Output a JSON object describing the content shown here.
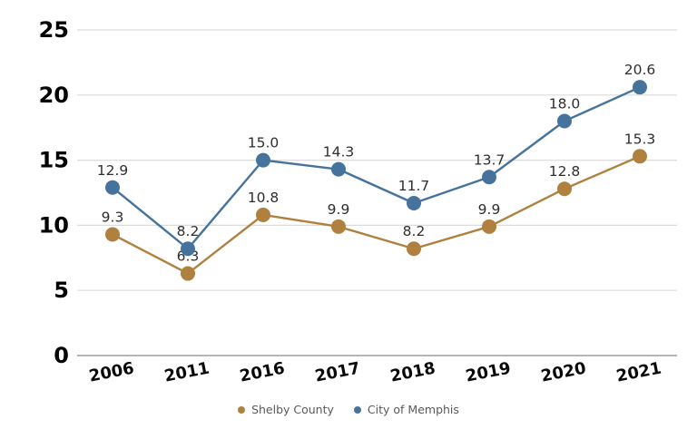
{
  "chart_data": {
    "type": "line",
    "title": "",
    "xlabel": "",
    "ylabel": "",
    "categories": [
      "2006",
      "2011",
      "2016",
      "2017",
      "2018",
      "2019",
      "2020",
      "2021"
    ],
    "series": [
      {
        "name": "Shelby County",
        "color": "#B0803F",
        "values": [
          9.3,
          6.3,
          10.8,
          9.9,
          8.2,
          9.9,
          12.8,
          15.3
        ]
      },
      {
        "name": "City of Memphis",
        "color": "#46739C",
        "values": [
          12.9,
          8.2,
          15.0,
          14.3,
          11.7,
          13.7,
          18.0,
          20.6
        ]
      }
    ],
    "ylim": [
      0,
      25
    ],
    "yticks": [
      0,
      5,
      10,
      15,
      20,
      25
    ],
    "grid": true,
    "data_labels": true,
    "data_label_decimals": 1,
    "legend_position": "bottom"
  },
  "colors": {
    "background": "#ffffff",
    "grid_line": "#dcdcdc",
    "axis_line": "#9b9b9b",
    "y_tick_label": "#000000",
    "x_tick_label": "#0a0a0a",
    "data_label": "#2e2e2e",
    "legend_text": "#595959"
  }
}
